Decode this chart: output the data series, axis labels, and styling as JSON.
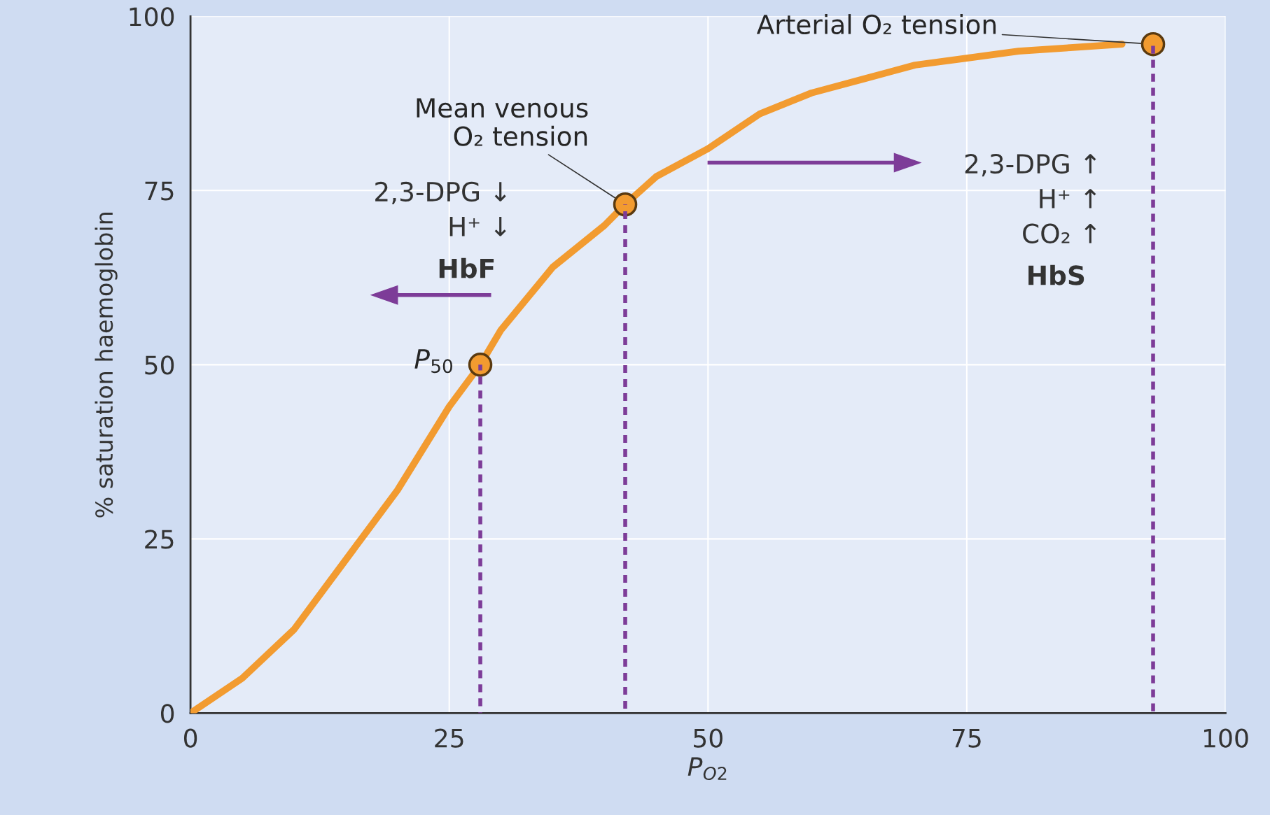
{
  "chart_data": {
    "type": "line",
    "xlabel": "P$_{O2}$",
    "ylabel": "% saturation haemoglobin",
    "xlim": [
      0,
      100
    ],
    "ylim": [
      0,
      100
    ],
    "xticks": [
      0,
      25,
      50,
      75,
      100
    ],
    "yticks": [
      0,
      25,
      50,
      75,
      100
    ],
    "grid": true,
    "series": [
      {
        "color": "#f29b30",
        "x": [
          0,
          5,
          10,
          15,
          20,
          25,
          28,
          30,
          35,
          40,
          42,
          45,
          50,
          55,
          60,
          65,
          70,
          75,
          80,
          85,
          90
        ],
        "values": [
          0,
          5,
          12,
          22,
          32,
          44,
          50,
          55,
          64,
          70,
          73,
          77,
          81,
          86,
          89,
          91,
          93,
          94,
          95,
          95.5,
          96
        ]
      },
      {
        "type": "line",
        "line_style": "dashed",
        "color": "#7d3c98",
        "x": [
          28,
          28
        ],
        "values": [
          0,
          50
        ]
      },
      {
        "type": "line",
        "line_style": "dashed",
        "color": "#7d3c98",
        "x": [
          42,
          42
        ],
        "values": [
          0,
          73
        ]
      },
      {
        "type": "line",
        "line_style": "dashed",
        "color": "#7d3c98",
        "x": [
          93,
          93
        ],
        "values": [
          0,
          96
        ]
      },
      {
        "type": "scatter",
        "marker": "circle",
        "color": "#f29b30",
        "x": [
          28,
          42,
          93
        ],
        "values": [
          50,
          73,
          96
        ]
      }
    ],
    "annotations": [
      {
        "text": "Arterial O₂ tension",
        "x": 93,
        "y": 96
      },
      {
        "text": "Mean venous\nO₂ tension",
        "x": 42,
        "y": 73
      },
      {
        "text": "P$_{50}$",
        "x": 28,
        "y": 50
      },
      "2,3-DPG ↓",
      "H⁺ ↓",
      "HbF",
      "2,3-DPG ↑",
      "H⁺ ↑",
      "CO₂ ↑",
      "HbS"
    ]
  }
}
